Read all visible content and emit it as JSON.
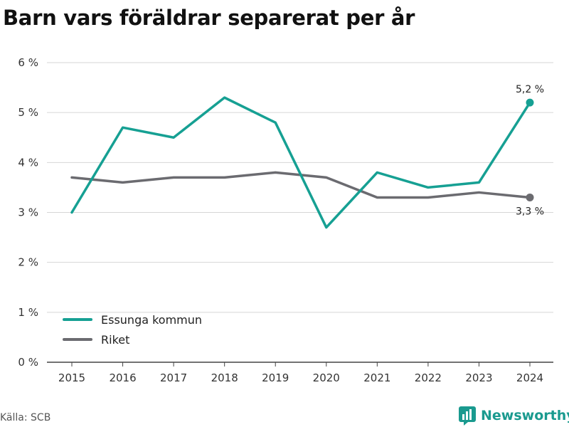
{
  "title": "Barn vars föräldrar separerat per år",
  "source": "Källa: SCB",
  "brand": {
    "name": "Newsworthy",
    "icon": "newsworthy-logo-icon",
    "color": "#1a9a8f"
  },
  "chart_data": {
    "type": "line",
    "x": [
      2015,
      2016,
      2017,
      2018,
      2019,
      2020,
      2021,
      2022,
      2023,
      2024
    ],
    "series": [
      {
        "name": "Essunga kommun",
        "color": "#16a093",
        "values": [
          3.0,
          4.7,
          4.5,
          5.3,
          4.8,
          2.7,
          3.8,
          3.5,
          3.6,
          5.2
        ]
      },
      {
        "name": "Riket",
        "color": "#6b6b70",
        "values": [
          3.7,
          3.6,
          3.7,
          3.7,
          3.8,
          3.7,
          3.3,
          3.3,
          3.4,
          3.3
        ]
      }
    ],
    "ylim": [
      0,
      6
    ],
    "yticks": [
      0,
      1,
      2,
      3,
      4,
      5,
      6
    ],
    "ytick_labels": [
      "0 %",
      "1 %",
      "2 %",
      "3 %",
      "4 %",
      "5 %",
      "6 %"
    ],
    "xtick_labels": [
      "2015",
      "2016",
      "2017",
      "2018",
      "2019",
      "2020",
      "2021",
      "2022",
      "2023",
      "2024"
    ],
    "annotations": [
      {
        "series": "Essunga kommun",
        "x": 2024,
        "label": "5,2 %",
        "position": "above"
      },
      {
        "series": "Riket",
        "x": 2024,
        "label": "3,3 %",
        "position": "below"
      }
    ],
    "grid": true,
    "legend": "bottom-left"
  }
}
